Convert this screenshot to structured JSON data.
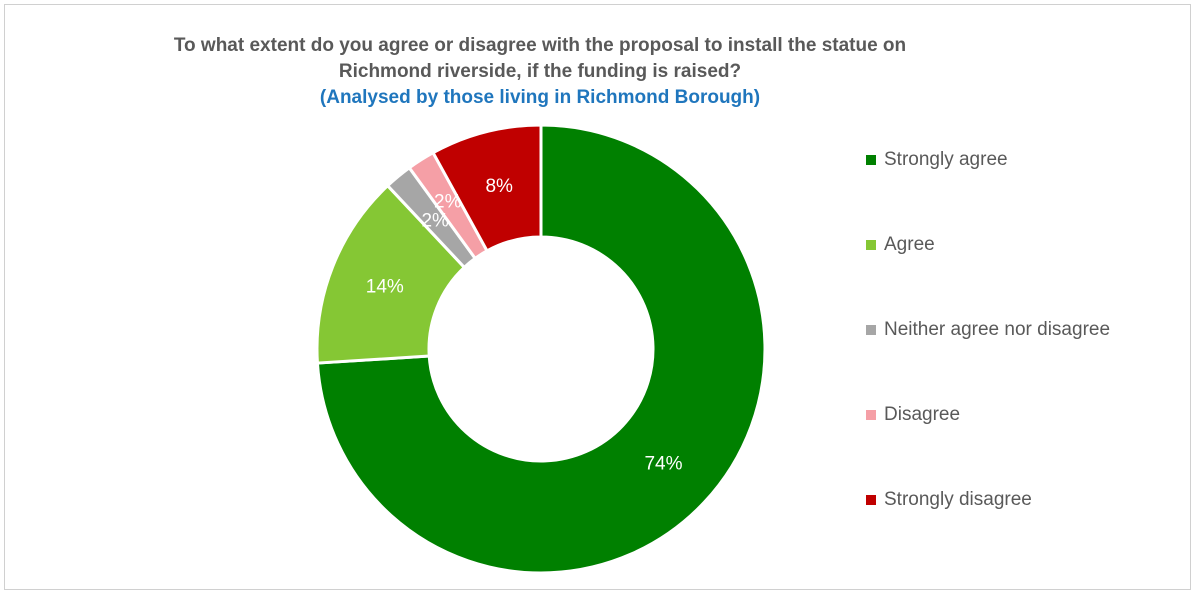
{
  "chart": {
    "title_line1": "To what extent do you agree or disagree with the proposal to install the statue on",
    "title_line2": "Richmond riverside, if the funding is raised?",
    "subtitle": "(Analysed by those living in Richmond Borough)"
  },
  "chart_data": {
    "type": "pie",
    "donut": true,
    "title": "To what extent do you agree or disagree with the proposal to install the statue on Richmond riverside, if the funding is raised?",
    "subtitle": "(Analysed by those living in Richmond Borough)",
    "legend_position": "right",
    "categories": [
      "Strongly agree",
      "Agree",
      "Neither agree nor disagree",
      "Disagree",
      "Strongly disagree"
    ],
    "values": [
      74,
      14,
      2,
      2,
      8
    ],
    "data_labels": [
      "74%",
      "14%",
      "2%",
      "2%",
      "8%"
    ],
    "colors": [
      "#008000",
      "#85c734",
      "#a6a6a6",
      "#f59fa6",
      "#c00000"
    ]
  }
}
